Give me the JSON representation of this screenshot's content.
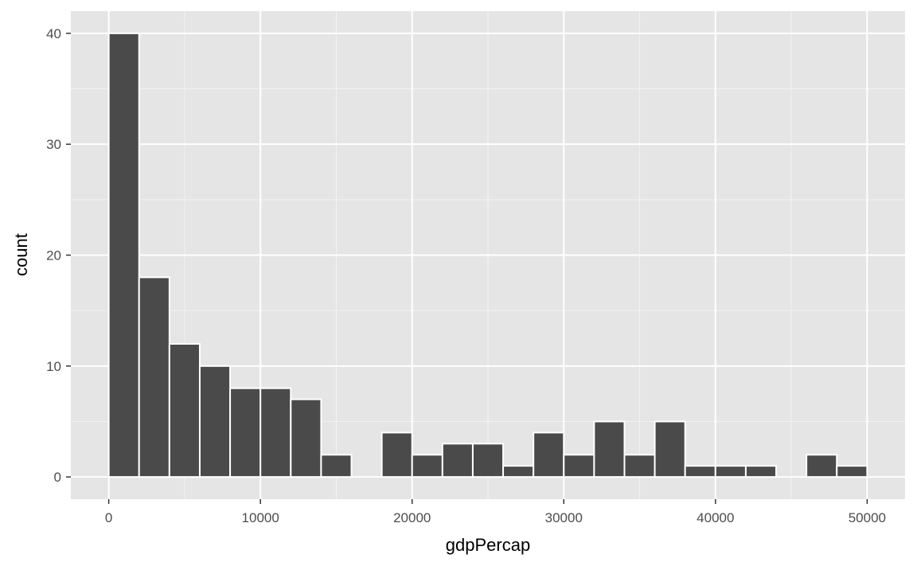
{
  "chart_data": {
    "type": "histogram",
    "x_label": "gdpPercap",
    "y_label": "count",
    "bins": [
      0,
      2000,
      4000,
      6000,
      8000,
      10000,
      12000,
      14000,
      16000,
      18000,
      20000,
      22000,
      24000,
      26000,
      28000,
      30000,
      32000,
      34000,
      36000,
      38000,
      40000,
      42000,
      44000,
      46000,
      48000,
      50000
    ],
    "counts": [
      40,
      18,
      12,
      10,
      8,
      8,
      7,
      2,
      0,
      4,
      2,
      3,
      3,
      1,
      4,
      2,
      5,
      2,
      5,
      1,
      1,
      1,
      0,
      2,
      1
    ],
    "color": "#4a4a4a",
    "xlim": [
      -2500,
      52500
    ],
    "xticks": [
      0,
      10000,
      20000,
      30000,
      40000,
      50000
    ],
    "x_minor_grid": [
      5000,
      15000,
      25000,
      35000,
      45000
    ],
    "ylim": [
      -2,
      42
    ],
    "yticks": [
      0,
      10,
      20,
      30,
      40
    ],
    "y_minor_grid": [
      5,
      15,
      25,
      35
    ],
    "grid": true
  }
}
